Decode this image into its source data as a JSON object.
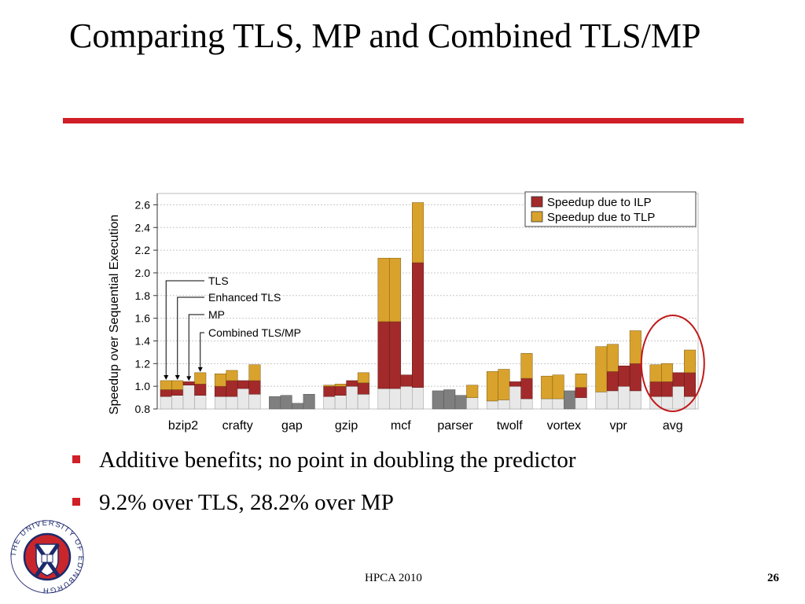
{
  "slide": {
    "title": "Comparing TLS, MP and Combined TLS/MP",
    "accent_color": "#d01f26",
    "bullets": [
      "Additive benefits; no point in doubling the predictor",
      "9.2% over TLS, 28.2% over MP"
    ],
    "footer": "HPCA 2010",
    "page_number": "26",
    "logo_text": "THE UNIVERSITY OF EDINBURGH"
  },
  "chart_data": {
    "type": "bar",
    "stacked": true,
    "ylabel": "Speedup over Sequential Execution",
    "ylim": [
      0.8,
      2.7
    ],
    "yticks": [
      "0.8",
      "1.0",
      "1.2",
      "1.4",
      "1.6",
      "1.8",
      "2.0",
      "2.2",
      "2.4",
      "2.6"
    ],
    "grid": true,
    "legend_position": "top-right",
    "config_labels": [
      "TLS",
      "Enhanced TLS",
      "MP",
      "Combined TLS/MP"
    ],
    "colors": {
      "base": "#e8e8e8",
      "ilp": "#a32a2a",
      "tlp": "#d9a22c",
      "mp": "#7f7f7f",
      "highlight": "#c01818"
    },
    "series": [
      {
        "name": "Speedup due to ILP",
        "key": "ilp"
      },
      {
        "name": "Speedup due to TLP",
        "key": "tlp"
      }
    ],
    "benchmarks": [
      {
        "name": "bzip2",
        "bars": [
          [
            0.91,
            0.97,
            1.05
          ],
          [
            0.92,
            0.97,
            1.05
          ],
          [
            1.01,
            1.04,
            1.04
          ],
          [
            0.92,
            1.02,
            1.12
          ]
        ]
      },
      {
        "name": "crafty",
        "bars": [
          [
            0.91,
            1.0,
            1.11
          ],
          [
            0.91,
            1.05,
            1.14
          ],
          [
            0.98,
            1.05,
            1.05
          ],
          [
            0.93,
            1.05,
            1.19
          ]
        ]
      },
      {
        "name": "gap",
        "bars": [
          [
            0.91
          ],
          [
            0.92
          ],
          [
            0.85
          ],
          [
            0.93
          ]
        ],
        "mp_only": true
      },
      {
        "name": "gzip",
        "bars": [
          [
            0.91,
            1.0,
            1.01
          ],
          [
            0.92,
            1.0,
            1.02
          ],
          [
            1.0,
            1.05,
            1.05
          ],
          [
            0.93,
            1.03,
            1.12
          ]
        ]
      },
      {
        "name": "mcf",
        "bars": [
          [
            0.98,
            1.57,
            2.13
          ],
          [
            0.98,
            1.57,
            2.13
          ],
          [
            1.0,
            1.1,
            1.1
          ],
          [
            0.99,
            2.09,
            2.62
          ]
        ]
      },
      {
        "name": "parser",
        "bars": [
          [
            0.96
          ],
          [
            0.97
          ],
          [
            0.92
          ],
          [
            0.9,
            0.9,
            1.01
          ]
        ],
        "mp_only": true
      },
      {
        "name": "twolf",
        "bars": [
          [
            0.87,
            0.87,
            1.13
          ],
          [
            0.88,
            0.88,
            1.15
          ],
          [
            1.0,
            1.04,
            1.04
          ],
          [
            0.89,
            1.07,
            1.29
          ]
        ]
      },
      {
        "name": "vortex",
        "bars": [
          [
            0.89,
            0.89,
            1.09
          ],
          [
            0.89,
            0.89,
            1.1
          ],
          [
            0.96
          ],
          [
            0.9,
            0.99,
            1.11
          ]
        ]
      },
      {
        "name": "vpr",
        "bars": [
          [
            0.95,
            0.95,
            1.35
          ],
          [
            0.96,
            1.13,
            1.37
          ],
          [
            1.0,
            1.18,
            1.18
          ],
          [
            0.96,
            1.2,
            1.49
          ]
        ]
      },
      {
        "name": "avg",
        "bars": [
          [
            0.91,
            1.04,
            1.19
          ],
          [
            0.91,
            1.04,
            1.2
          ],
          [
            1.0,
            1.12,
            1.12
          ],
          [
            0.91,
            1.12,
            1.32
          ]
        ],
        "highlighted": true
      }
    ]
  }
}
